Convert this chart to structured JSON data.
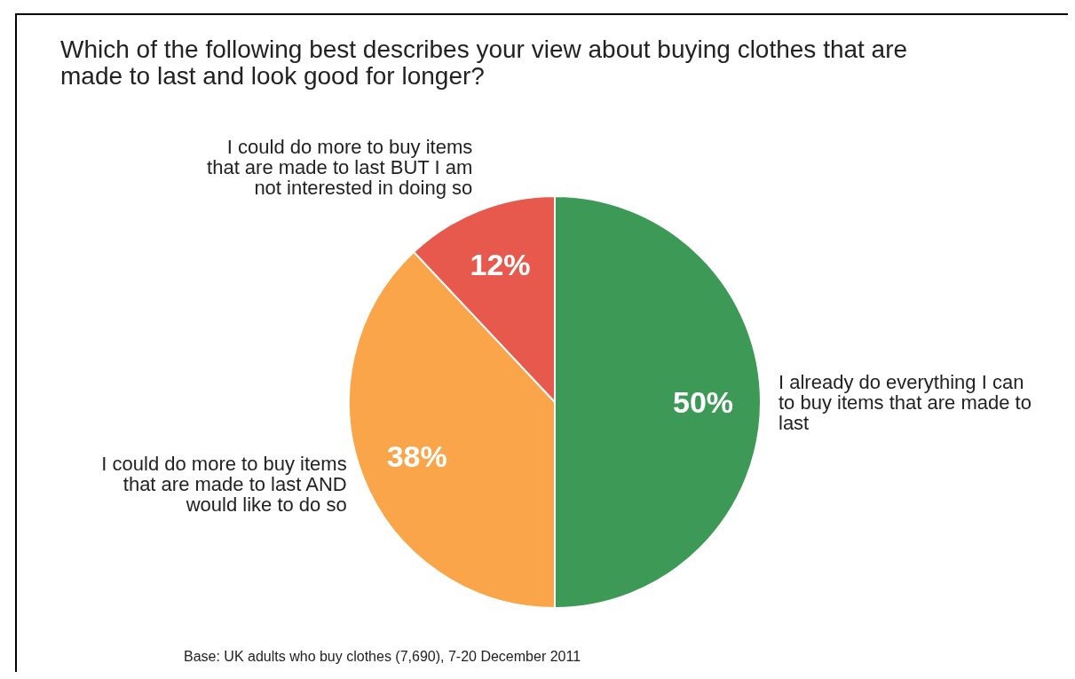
{
  "chart_data": {
    "type": "pie",
    "title": "Which of the following best describes your view about buying clothes that are made to last and look good for longer?",
    "categories": [
      "I already do everything I can to buy items that are made to last",
      "I could do more to buy items that are made to last AND would like to do so",
      "I could do more to buy items that are made to last BUT I am not interested in doing so"
    ],
    "values": [
      50,
      38,
      12
    ],
    "colors": [
      "#3d9956",
      "#fba54a",
      "#e8594d"
    ],
    "value_labels": [
      "50%",
      "38%",
      "12%"
    ],
    "annotations": [
      "Base: UK adults who buy clothes (7,690), 7-20 December 2011"
    ]
  }
}
